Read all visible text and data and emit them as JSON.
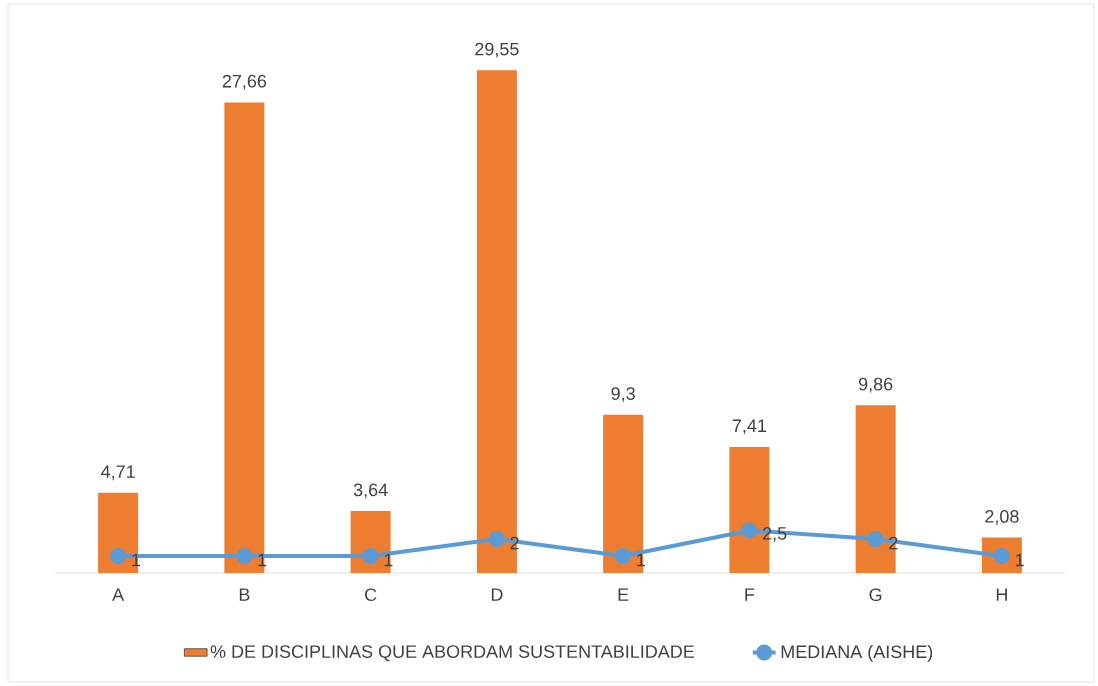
{
  "chart_data": {
    "type": "bar",
    "categories": [
      "A",
      "B",
      "C",
      "D",
      "E",
      "F",
      "G",
      "H"
    ],
    "series": [
      {
        "name": "% DE DISCIPLINAS QUE ABORDAM SUSTENTABILIDADE",
        "color": "#ed7d31",
        "values": [
          4.71,
          27.66,
          3.64,
          29.55,
          9.3,
          7.41,
          9.86,
          2.08
        ],
        "value_labels": [
          "4,71",
          "27,66",
          "3,64",
          "29,55",
          "9,3",
          "7,41",
          "9,86",
          "2,08"
        ]
      },
      {
        "name": "MEDIANA (AISHE)",
        "type": "line",
        "color": "#5b9bd5",
        "marker": "circle",
        "values": [
          1,
          1,
          1,
          2,
          1,
          2.5,
          2,
          1
        ],
        "value_labels": [
          "1",
          "1",
          "1",
          "2",
          "1",
          "2,5",
          "2",
          "1"
        ]
      }
    ],
    "tick_labels": "x",
    "grid": false,
    "legend": "bottom"
  }
}
